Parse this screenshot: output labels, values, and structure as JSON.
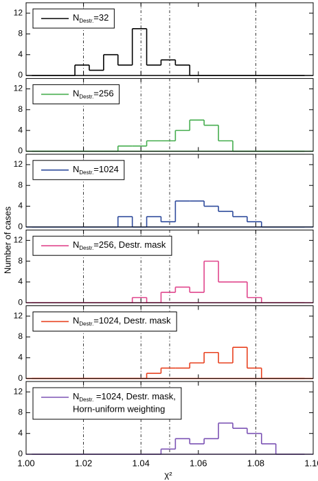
{
  "x_axis": {
    "label": "χ²",
    "xlim": [
      1.0,
      1.1
    ],
    "xticks": [
      {
        "value": 1.0,
        "label": "1.00"
      },
      {
        "value": 1.02,
        "label": "1.02"
      },
      {
        "value": 1.04,
        "label": "1.04"
      },
      {
        "value": 1.06,
        "label": "1.06"
      },
      {
        "value": 1.08,
        "label": "1.08"
      },
      {
        "value": 1.1,
        "label": "1.10"
      }
    ],
    "reference_lines": [
      1.02,
      1.04,
      1.05,
      1.08
    ]
  },
  "y_axis_label": "Number of cases",
  "chart_data": [
    {
      "type": "histogram",
      "legend": {
        "main": "N",
        "sub": "Destr.",
        "rest": [
          "=32"
        ]
      },
      "color": "#000000",
      "bins": [
        1.002,
        1.007,
        1.012,
        1.017,
        1.022,
        1.027,
        1.032,
        1.037,
        1.042,
        1.047,
        1.052,
        1.057,
        1.062,
        1.067,
        1.072,
        1.077,
        1.082,
        1.087,
        1.092,
        1.097
      ],
      "values": [
        0,
        0,
        0,
        2,
        1,
        4,
        2,
        9,
        2,
        3,
        2,
        0,
        0,
        0,
        0,
        0,
        0,
        0,
        0
      ],
      "ylim": [
        0,
        14
      ],
      "yticks": [
        0,
        4,
        8,
        12
      ]
    },
    {
      "type": "histogram",
      "legend": {
        "main": "N",
        "sub": "Destr.",
        "rest": [
          "=256"
        ]
      },
      "color": "#45ad4e",
      "bins": [
        1.002,
        1.007,
        1.012,
        1.017,
        1.022,
        1.027,
        1.032,
        1.037,
        1.042,
        1.047,
        1.052,
        1.057,
        1.062,
        1.067,
        1.072,
        1.077,
        1.082,
        1.087,
        1.092,
        1.097
      ],
      "values": [
        0,
        0,
        0,
        0,
        0,
        0,
        1,
        1,
        2,
        2,
        4,
        6,
        5,
        2,
        0,
        0,
        0,
        0,
        0
      ],
      "ylim": [
        0,
        14
      ],
      "yticks": [
        0,
        4,
        8,
        12
      ]
    },
    {
      "type": "histogram",
      "legend": {
        "main": "N",
        "sub": "Destr.",
        "rest": [
          "=1024"
        ]
      },
      "color": "#2f4b9c",
      "bins": [
        1.002,
        1.007,
        1.012,
        1.017,
        1.022,
        1.027,
        1.032,
        1.037,
        1.042,
        1.047,
        1.052,
        1.057,
        1.062,
        1.067,
        1.072,
        1.077,
        1.082,
        1.087,
        1.092,
        1.097
      ],
      "values": [
        0,
        0,
        0,
        0,
        0,
        0,
        2,
        0,
        2,
        1,
        5,
        5,
        4,
        3,
        2,
        1,
        0,
        0,
        0
      ],
      "ylim": [
        0,
        14
      ],
      "yticks": [
        0,
        4,
        8,
        12
      ]
    },
    {
      "type": "histogram",
      "legend": {
        "main": "N",
        "sub": "Destr.",
        "rest": [
          "=256, Destr. mask"
        ]
      },
      "color": "#e0458c",
      "bins": [
        1.002,
        1.007,
        1.012,
        1.017,
        1.022,
        1.027,
        1.032,
        1.037,
        1.042,
        1.047,
        1.052,
        1.057,
        1.062,
        1.067,
        1.072,
        1.077,
        1.082,
        1.087,
        1.092,
        1.097
      ],
      "values": [
        0,
        0,
        0,
        0,
        0,
        0,
        0,
        1,
        0,
        2,
        3,
        2,
        8,
        4,
        4,
        1,
        0,
        0,
        0
      ],
      "ylim": [
        0,
        14
      ],
      "yticks": [
        0,
        4,
        8,
        12
      ]
    },
    {
      "type": "histogram",
      "legend": {
        "main": "N",
        "sub": "Destr.",
        "rest": [
          "=1024, Destr. mask"
        ]
      },
      "color": "#e8401e",
      "bins": [
        1.002,
        1.007,
        1.012,
        1.017,
        1.022,
        1.027,
        1.032,
        1.037,
        1.042,
        1.047,
        1.052,
        1.057,
        1.062,
        1.067,
        1.072,
        1.077,
        1.082,
        1.087,
        1.092,
        1.097
      ],
      "values": [
        0,
        0,
        0,
        0,
        0,
        0,
        0,
        0,
        1,
        2,
        2,
        3,
        5,
        3,
        6,
        2,
        0,
        0,
        0
      ],
      "ylim": [
        0,
        14
      ],
      "yticks": [
        0,
        4,
        8,
        12
      ]
    },
    {
      "type": "histogram",
      "legend": {
        "main": "N",
        "sub": "Destr.",
        "rest": [
          " =1024, Destr. mask,",
          "Horn-uniform weighting"
        ]
      },
      "color": "#7b52b4",
      "bins": [
        1.002,
        1.007,
        1.012,
        1.017,
        1.022,
        1.027,
        1.032,
        1.037,
        1.042,
        1.047,
        1.052,
        1.057,
        1.062,
        1.067,
        1.072,
        1.077,
        1.082,
        1.087,
        1.092,
        1.097
      ],
      "values": [
        0,
        0,
        0,
        0,
        0,
        0,
        0,
        0,
        0,
        1,
        3,
        2,
        3,
        6,
        5,
        4,
        2,
        0,
        0
      ],
      "ylim": [
        0,
        14
      ],
      "yticks": [
        0,
        4,
        8,
        12
      ]
    }
  ]
}
